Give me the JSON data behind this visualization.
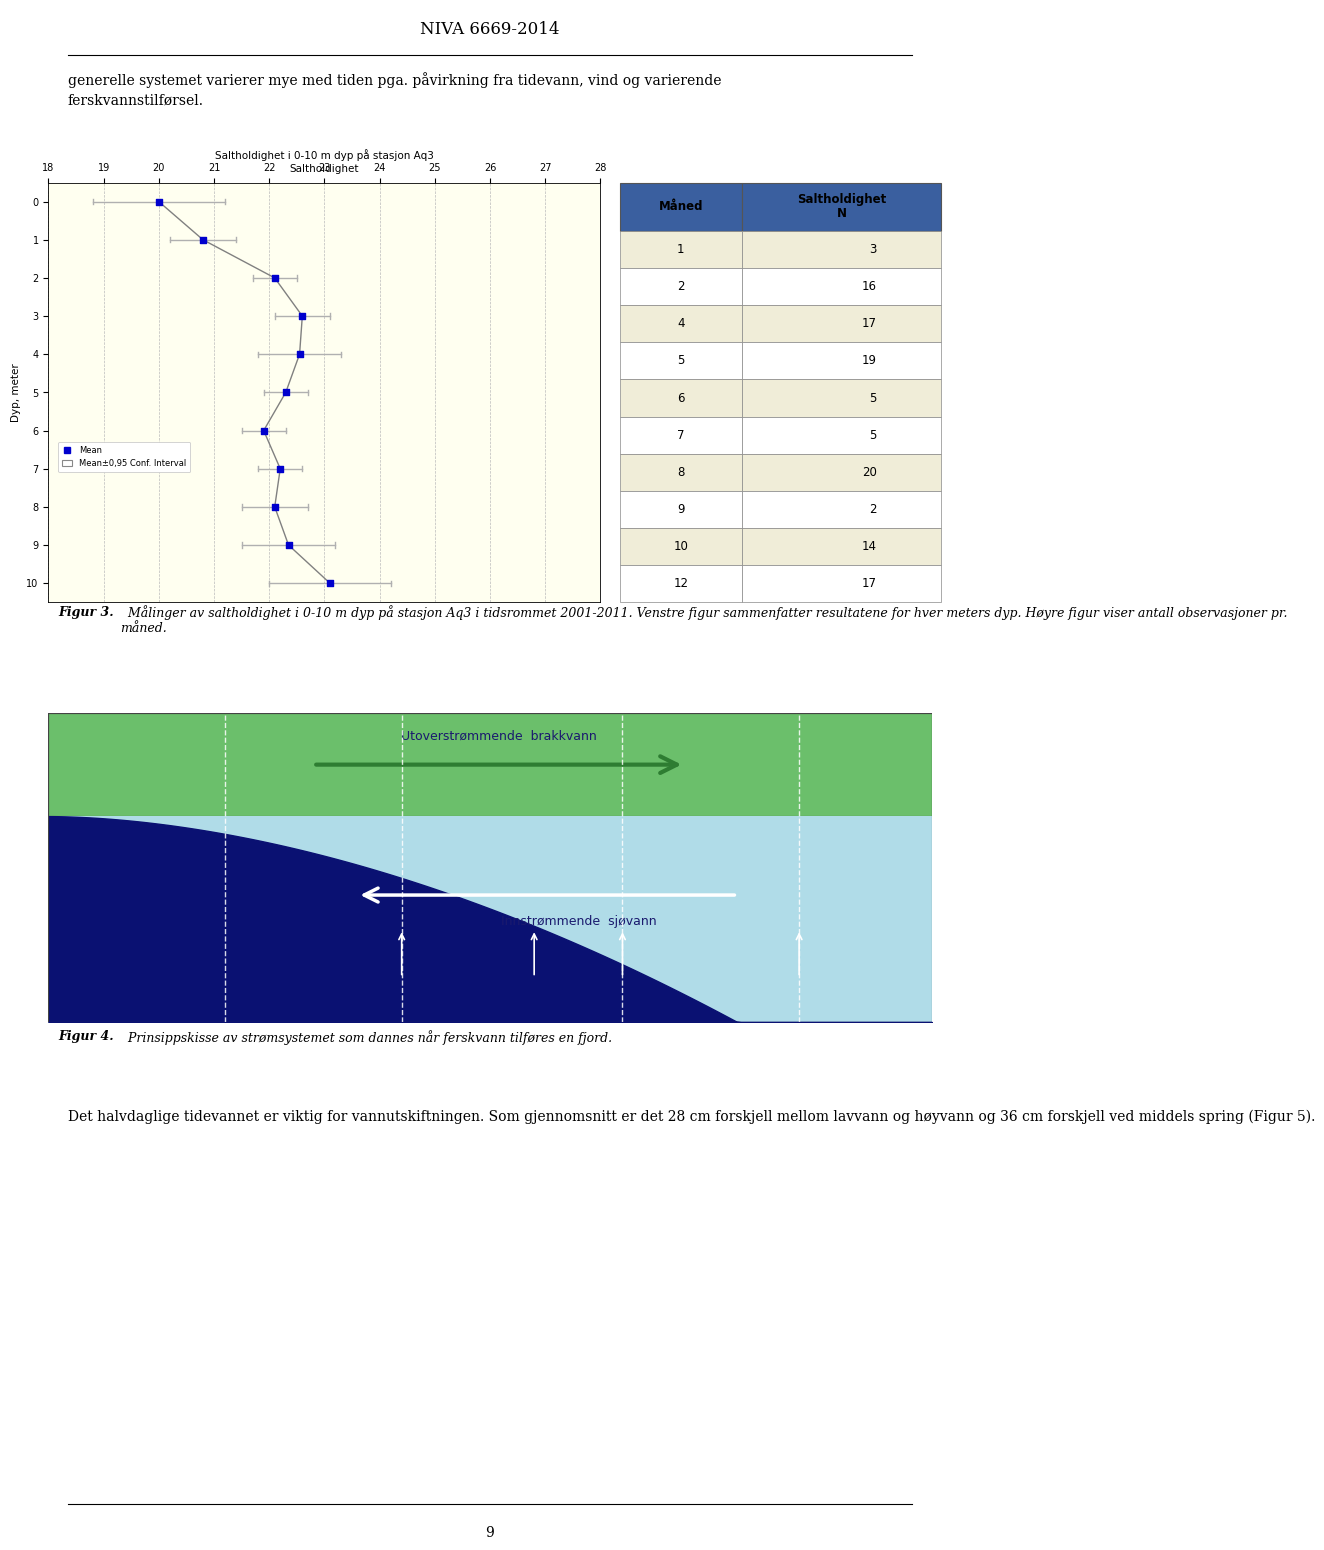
{
  "page_title": "NIVA 6669-2014",
  "page_number": "9",
  "text_paragraph1_line1": "generelle systemet varierer mye med tiden pga. påvirkning fra tidevann, vind og varierende",
  "text_paragraph1_line2": "ferskvannstilførsel.",
  "chart_title": "Saltholdighet i 0-10 m dyp på stasjon Aq3",
  "chart_subtitle": "Saltholdighet",
  "chart_xlabel_values": [
    18,
    19,
    20,
    21,
    22,
    23,
    24,
    25,
    26,
    27,
    28
  ],
  "chart_ylabel_label": "Dyp, meter",
  "chart_depths": [
    0,
    1,
    2,
    3,
    4,
    5,
    6,
    7,
    8,
    9,
    10
  ],
  "chart_means": [
    20.0,
    20.8,
    22.1,
    22.6,
    22.55,
    22.3,
    21.9,
    22.2,
    22.1,
    22.35,
    23.1
  ],
  "chart_ci_low": [
    18.8,
    20.2,
    21.7,
    22.1,
    21.8,
    21.9,
    21.5,
    21.8,
    21.5,
    21.5,
    22.0
  ],
  "chart_ci_high": [
    21.2,
    21.4,
    22.5,
    23.1,
    23.3,
    22.7,
    22.3,
    22.6,
    22.7,
    23.2,
    24.2
  ],
  "chart_bg_color": "#FFFFF0",
  "chart_mean_color": "#0000CD",
  "chart_line_color": "#808080",
  "table_months": [
    1,
    2,
    4,
    5,
    6,
    7,
    8,
    9,
    10,
    12
  ],
  "table_N": [
    3,
    16,
    17,
    19,
    5,
    5,
    20,
    2,
    14,
    17
  ],
  "table_header_maaned": "Måned",
  "table_header_salt": "Saltholdighet\nN",
  "fig3_bold": "Figur 3.",
  "fig3_text": "  Målinger av saltholdighet i 0-10 m dyp på stasjon Aq3 i tidsrommet 2001-2011. Venstre figur sammenfatter resultatene for hver meters dyp. Høyre figur viser antall observasjoner pr. måned.",
  "fjord_label_outflow": "Utoverstrømmende  brakkvann",
  "fjord_label_inflow": "Innstrømmende  sjøvann",
  "fig4_bold": "Figur 4.",
  "fig4_text": "  Prinsippskisse av strømsystemet som dannes når ferskvann tilføres en fjord.",
  "text_paragraph2": "Det halvdaglige tidevannet er viktig for vannutskiftningen. Som gjennomsnitt er det 28 cm forskjell mellom lavvann og høyvann og 36 cm forskjell ved middels spring (Figur 5).",
  "color_green_top": "#6BBF6B",
  "color_green_arrow": "#2E7D32",
  "color_light_blue_sea": "#B0DCE8",
  "color_dark_blue": "#0A1172",
  "color_sky_blue": "#87CEEB",
  "table_header_bg": "#3A5F9F",
  "table_row_bg1": "#F0EDD8",
  "table_row_bg2": "#FFFFFF"
}
